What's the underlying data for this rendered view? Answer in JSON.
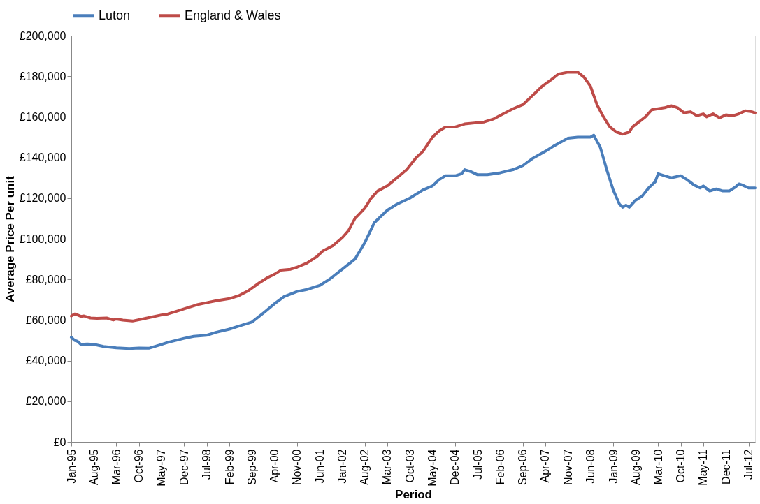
{
  "chart_data": {
    "type": "line",
    "xlabel": "Period",
    "ylabel": "Average Price Per unit",
    "xlim": [
      "1995-01",
      "2012-09"
    ],
    "xticks": [
      {
        "value": "1995-01",
        "label": "Jan-95"
      },
      {
        "value": "1995-08",
        "label": "Aug-95"
      },
      {
        "value": "1996-03",
        "label": "Mar-96"
      },
      {
        "value": "1996-10",
        "label": "Oct-96"
      },
      {
        "value": "1997-05",
        "label": "May-97"
      },
      {
        "value": "1997-12",
        "label": "Dec-97"
      },
      {
        "value": "1998-07",
        "label": "Jul-98"
      },
      {
        "value": "1999-02",
        "label": "Feb-99"
      },
      {
        "value": "1999-09",
        "label": "Sep-99"
      },
      {
        "value": "2000-04",
        "label": "Apr-00"
      },
      {
        "value": "2000-11",
        "label": "Nov-00"
      },
      {
        "value": "2001-06",
        "label": "Jun-01"
      },
      {
        "value": "2002-01",
        "label": "Jan-02"
      },
      {
        "value": "2002-08",
        "label": "Aug-02"
      },
      {
        "value": "2003-03",
        "label": "Mar-03"
      },
      {
        "value": "2003-10",
        "label": "Oct-03"
      },
      {
        "value": "2004-05",
        "label": "May-04"
      },
      {
        "value": "2004-12",
        "label": "Dec-04"
      },
      {
        "value": "2005-07",
        "label": "Jul-05"
      },
      {
        "value": "2006-02",
        "label": "Feb-06"
      },
      {
        "value": "2006-09",
        "label": "Sep-06"
      },
      {
        "value": "2007-04",
        "label": "Apr-07"
      },
      {
        "value": "2007-11",
        "label": "Nov-07"
      },
      {
        "value": "2008-06",
        "label": "Jun-08"
      },
      {
        "value": "2009-01",
        "label": "Jan-09"
      },
      {
        "value": "2009-08",
        "label": "Aug-09"
      },
      {
        "value": "2010-03",
        "label": "Mar-10"
      },
      {
        "value": "2010-10",
        "label": "Oct-10"
      },
      {
        "value": "2011-05",
        "label": "May-11"
      },
      {
        "value": "2011-12",
        "label": "Dec-11"
      },
      {
        "value": "2012-07",
        "label": "Jul-12"
      }
    ],
    "ylim": [
      0,
      200000
    ],
    "yticks": [
      {
        "value": 0,
        "label": "£0"
      },
      {
        "value": 20000,
        "label": "£20,000"
      },
      {
        "value": 40000,
        "label": "£40,000"
      },
      {
        "value": 60000,
        "label": "£60,000"
      },
      {
        "value": 80000,
        "label": "£80,000"
      },
      {
        "value": 100000,
        "label": "£100,000"
      },
      {
        "value": 120000,
        "label": "£120,000"
      },
      {
        "value": 140000,
        "label": "£140,000"
      },
      {
        "value": 160000,
        "label": "£160,000"
      },
      {
        "value": 180000,
        "label": "£180,000"
      },
      {
        "value": 200000,
        "label": "£200,000"
      }
    ],
    "grid": false,
    "legend": "top",
    "marker": "none",
    "line_style": "solid",
    "series": [
      {
        "name": "Luton",
        "color": "#4a7ebb",
        "x": [
          "1995-01",
          "1995-02",
          "1995-03",
          "1995-04",
          "1995-06",
          "1995-08",
          "1995-11",
          "1996-03",
          "1996-07",
          "1996-10",
          "1997-01",
          "1997-05",
          "1997-07",
          "1997-12",
          "1998-03",
          "1998-07",
          "1998-10",
          "1999-02",
          "1999-05",
          "1999-09",
          "2000-01",
          "2000-04",
          "2000-07",
          "2000-11",
          "2001-02",
          "2001-06",
          "2001-09",
          "2002-01",
          "2002-05",
          "2002-08",
          "2002-11",
          "2003-03",
          "2003-06",
          "2003-10",
          "2004-02",
          "2004-05",
          "2004-07",
          "2004-09",
          "2004-12",
          "2005-02",
          "2005-03",
          "2005-05",
          "2005-07",
          "2005-10",
          "2006-02",
          "2006-06",
          "2006-09",
          "2006-12",
          "2007-04",
          "2007-07",
          "2007-11",
          "2008-02",
          "2008-06",
          "2008-07",
          "2008-09",
          "2008-11",
          "2009-01",
          "2009-03",
          "2009-04",
          "2009-05",
          "2009-06",
          "2009-08",
          "2009-10",
          "2009-12",
          "2010-02",
          "2010-03",
          "2010-05",
          "2010-07",
          "2010-10",
          "2010-12",
          "2011-02",
          "2011-04",
          "2011-05",
          "2011-07",
          "2011-09",
          "2011-11",
          "2012-01",
          "2012-03",
          "2012-04",
          "2012-05",
          "2012-07",
          "2012-09"
        ],
        "values": [
          51500,
          50000,
          49500,
          48000,
          48200,
          48000,
          47000,
          46300,
          46000,
          46200,
          46100,
          48000,
          49000,
          51000,
          52000,
          52500,
          54000,
          55500,
          57000,
          59000,
          64000,
          68000,
          71500,
          74000,
          75000,
          77000,
          80000,
          85000,
          90000,
          98000,
          108000,
          114000,
          117000,
          120000,
          124000,
          126000,
          129000,
          131000,
          131000,
          132000,
          134000,
          133000,
          131500,
          131500,
          132500,
          134000,
          136000,
          139500,
          143000,
          146000,
          149500,
          150000,
          150000,
          151000,
          145000,
          134000,
          124000,
          117000,
          115500,
          116500,
          115500,
          119000,
          121000,
          125000,
          128000,
          132000,
          131000,
          130000,
          131000,
          129000,
          126500,
          125000,
          126000,
          123500,
          124500,
          123500,
          123500,
          125500,
          127000,
          126500,
          125000,
          125000
        ]
      },
      {
        "name": "England & Wales",
        "color": "#be4b48",
        "x": [
          "1995-01",
          "1995-02",
          "1995-03",
          "1995-04",
          "1995-05",
          "1995-07",
          "1995-09",
          "1995-12",
          "1996-02",
          "1996-03",
          "1996-05",
          "1996-08",
          "1996-11",
          "1997-02",
          "1997-05",
          "1997-07",
          "1997-10",
          "1998-01",
          "1998-04",
          "1998-07",
          "1998-10",
          "1999-02",
          "1999-05",
          "1999-08",
          "1999-11",
          "2000-02",
          "2000-04",
          "2000-06",
          "2000-09",
          "2000-11",
          "2001-02",
          "2001-05",
          "2001-07",
          "2001-10",
          "2002-01",
          "2002-03",
          "2002-05",
          "2002-08",
          "2002-10",
          "2002-12",
          "2003-03",
          "2003-06",
          "2003-09",
          "2003-12",
          "2004-02",
          "2004-05",
          "2004-07",
          "2004-09",
          "2004-12",
          "2005-03",
          "2005-06",
          "2005-09",
          "2005-12",
          "2006-03",
          "2006-06",
          "2006-09",
          "2006-12",
          "2007-03",
          "2007-06",
          "2007-08",
          "2007-11",
          "2008-02",
          "2008-04",
          "2008-06",
          "2008-08",
          "2008-10",
          "2008-12",
          "2009-02",
          "2009-04",
          "2009-06",
          "2009-07",
          "2009-09",
          "2009-11",
          "2010-01",
          "2010-03",
          "2010-05",
          "2010-07",
          "2010-09",
          "2010-11",
          "2011-01",
          "2011-03",
          "2011-05",
          "2011-06",
          "2011-08",
          "2011-10",
          "2011-12",
          "2012-02",
          "2012-04",
          "2012-06",
          "2012-08",
          "2012-09"
        ],
        "values": [
          62000,
          63000,
          62500,
          61800,
          62000,
          61000,
          60800,
          61000,
          60000,
          60500,
          60000,
          59500,
          60500,
          61500,
          62500,
          63000,
          64500,
          66000,
          67500,
          68500,
          69500,
          70500,
          72000,
          74500,
          78000,
          81000,
          82500,
          84500,
          85000,
          86000,
          88000,
          91000,
          94000,
          96500,
          100500,
          104000,
          110000,
          115000,
          120000,
          123500,
          126000,
          130000,
          134000,
          140000,
          143000,
          150000,
          153000,
          155000,
          155000,
          156500,
          157000,
          157500,
          159000,
          161500,
          164000,
          166000,
          170500,
          175000,
          178500,
          181000,
          182000,
          182000,
          179500,
          175000,
          166000,
          160000,
          155000,
          152500,
          151500,
          152500,
          155000,
          157500,
          160000,
          163500,
          164000,
          164500,
          165500,
          164500,
          162000,
          162500,
          160500,
          161500,
          160000,
          161500,
          159500,
          161000,
          160500,
          161500,
          163000,
          162500,
          162000
        ]
      }
    ]
  }
}
